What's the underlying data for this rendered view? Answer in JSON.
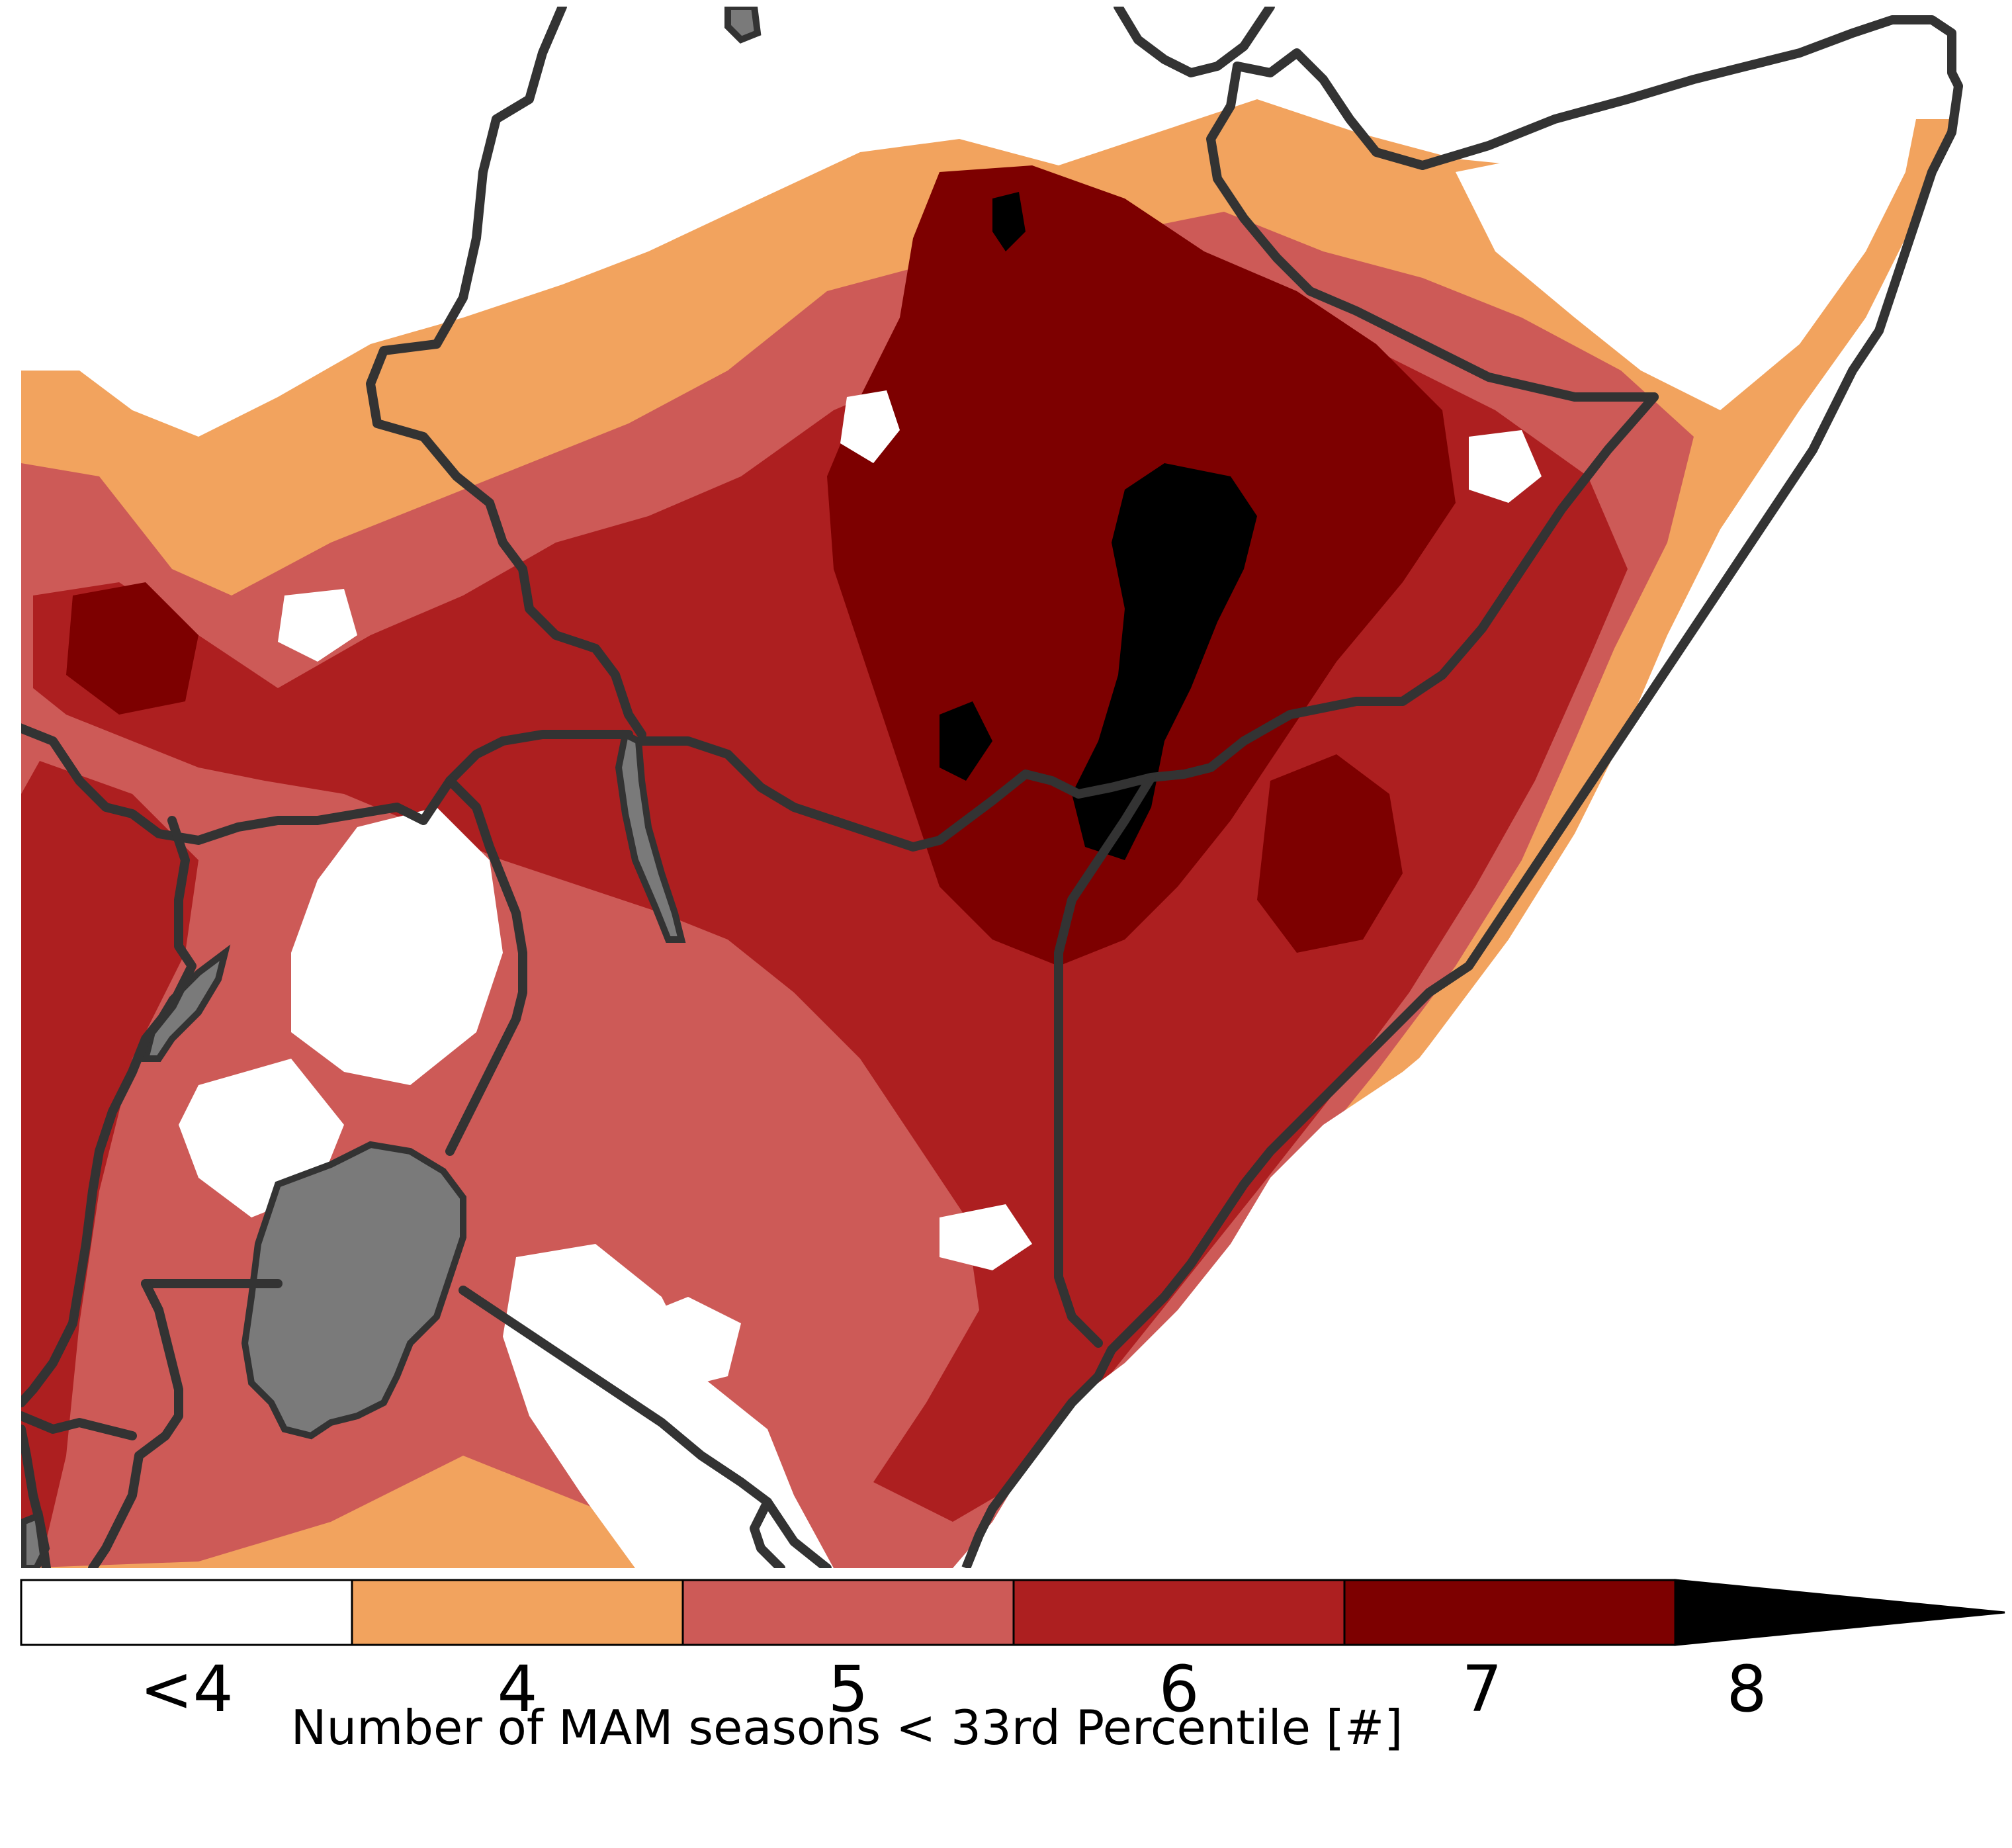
{
  "map": {
    "region": "East Africa / Horn of Africa",
    "colors": {
      "lt4": "#ffffff",
      "c4": "#f2a35e",
      "c5": "#cd5a57",
      "c6": "#ad1f20",
      "c7": "#7d0000",
      "c8": "#000000",
      "border": "#333333",
      "lake": "#7a7a7a"
    }
  },
  "legend": {
    "title": "Number of MAM seasons < 33rd Percentile [#]",
    "ticks": [
      "<4",
      "4",
      "5",
      "6",
      "7",
      "8"
    ],
    "extend": "max"
  }
}
